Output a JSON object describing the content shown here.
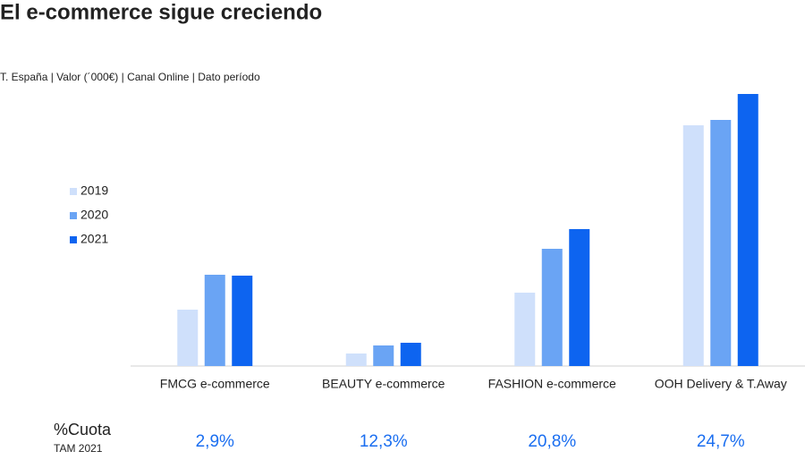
{
  "chart_data": {
    "type": "bar",
    "title": "El e-commerce sigue creciendo",
    "subtitle": "T. España | Valor (´000€) |  Canal Online | Dato período",
    "categories": [
      "FMCG e-commerce",
      "BEAUTY e-commerce",
      "FASHION e-commerce",
      "OOH Delivery & T.Away"
    ],
    "series": [
      {
        "name": "2019",
        "color": "#cfe0fb",
        "values": [
          63,
          14,
          82,
          269
        ]
      },
      {
        "name": "2020",
        "color": "#6aa4f4",
        "values": [
          102,
          23,
          131,
          275
        ]
      },
      {
        "name": "2021",
        "color": "#0d64f0",
        "values": [
          101,
          26,
          153,
          304
        ]
      }
    ],
    "ylim": [
      0,
      310
    ],
    "legend": "left",
    "share_title": "%Cuota",
    "share_subtitle": "TAM 2021",
    "share_labels": [
      "2,9%",
      "12,3%",
      "20,8%",
      "24,7%"
    ]
  }
}
